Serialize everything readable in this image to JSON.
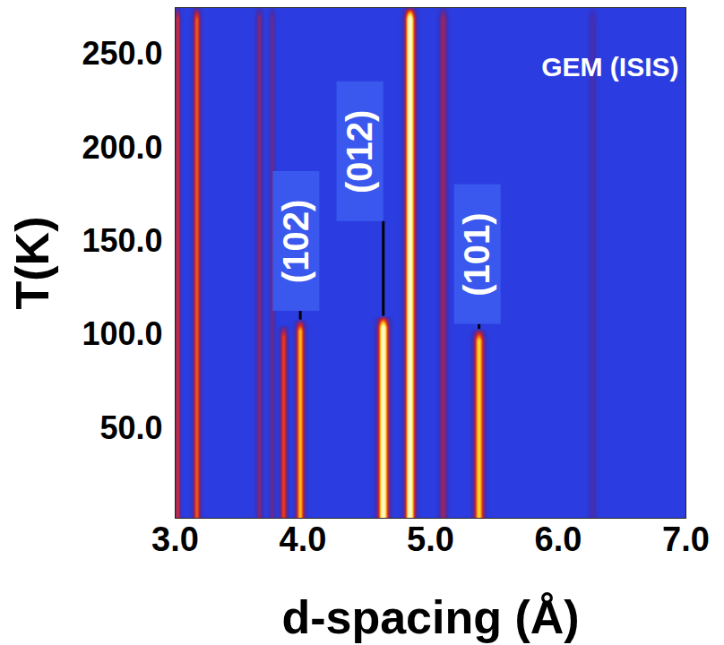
{
  "chart_data": {
    "type": "heatmap",
    "x_label": "d-spacing (Å)",
    "y_label": "T(K)",
    "corner_text": "GEM (ISIS)",
    "xlim": [
      3,
      7
    ],
    "xticks": [
      {
        "value": 3,
        "label": "3.0"
      },
      {
        "value": 4,
        "label": "4.0"
      },
      {
        "value": 5,
        "label": "5.0"
      },
      {
        "value": 6,
        "label": "6.0"
      },
      {
        "value": 7,
        "label": "7.0"
      }
    ],
    "ylim": [
      2,
      275
    ],
    "yticks": [
      {
        "value": 50,
        "label": "50.0"
      },
      {
        "value": 100,
        "label": "100.0"
      },
      {
        "value": 150,
        "label": "150.0"
      },
      {
        "value": 200,
        "label": "200.0"
      },
      {
        "value": 250,
        "label": "250.0"
      }
    ],
    "color_range": [
      0,
      1
    ],
    "peaks": [
      {
        "d": 3.02,
        "width": 0.014,
        "t_min": 2,
        "t_max": 275,
        "intensity": 0.55
      },
      {
        "d": 3.17,
        "width": 0.02,
        "t_min": 2,
        "t_max": 275,
        "intensity": 0.65
      },
      {
        "d": 3.66,
        "width": 0.018,
        "t_min": 2,
        "t_max": 275,
        "intensity": 0.35
      },
      {
        "d": 3.76,
        "width": 0.016,
        "t_min": 2,
        "t_max": 275,
        "intensity": 0.28
      },
      {
        "d": 3.85,
        "width": 0.02,
        "t_min": 2,
        "t_max": 105,
        "intensity": 0.6
      },
      {
        "d": 3.98,
        "width": 0.024,
        "t_min": 2,
        "t_max": 108,
        "intensity": 0.8
      },
      {
        "d": 4.63,
        "width": 0.03,
        "t_min": 2,
        "t_max": 110,
        "intensity": 1.05
      },
      {
        "d": 4.84,
        "width": 0.028,
        "t_min": 2,
        "t_max": 275,
        "intensity": 1.1
      },
      {
        "d": 5.1,
        "width": 0.022,
        "t_min": 2,
        "t_max": 275,
        "intensity": 0.4
      },
      {
        "d": 5.38,
        "width": 0.028,
        "t_min": 2,
        "t_max": 103,
        "intensity": 0.85
      },
      {
        "d": 6.27,
        "width": 0.022,
        "t_min": 2,
        "t_max": 275,
        "intensity": 0.18
      }
    ],
    "annotations": [
      {
        "text": "(102)",
        "d": 3.95,
        "T": 150
      },
      {
        "text": "(012)",
        "d": 4.45,
        "T": 198
      },
      {
        "text": "(101)",
        "d": 5.37,
        "T": 143
      }
    ]
  }
}
